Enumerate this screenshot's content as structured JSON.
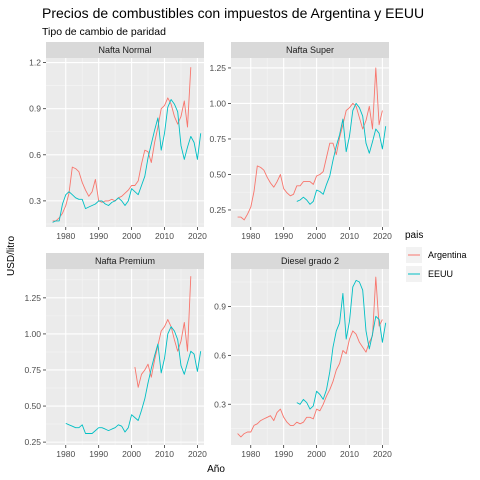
{
  "chart_data": {
    "type": "line",
    "title": "Precios de combustibles con impuestos de Argentina y EEUU",
    "subtitle": "Tipo de cambio de paridad",
    "xlabel": "Año",
    "ylabel": "USD/litro",
    "legend": {
      "title": "pais",
      "position": "right",
      "entries": [
        {
          "name": "Argentina",
          "color": "#F8766D"
        },
        {
          "name": "EEUU",
          "color": "#00BFC4"
        }
      ]
    },
    "grid": true,
    "xlim": [
      1974,
      2022
    ],
    "xticks": [
      1980,
      1990,
      2000,
      2010,
      2020
    ],
    "panels": [
      {
        "label": "Nafta Normal",
        "ylim": [
          0.13,
          1.23
        ],
        "yticks": [
          0.3,
          0.6,
          0.9,
          1.2
        ],
        "ytick_labels": [
          "0.3",
          "0.6",
          "0.9",
          "1.2"
        ],
        "series": [
          {
            "name": "Argentina",
            "x": [
              1976,
              1977,
              1978,
              1979,
              1980,
              1981,
              1982,
              1983,
              1984,
              1985,
              1986,
              1987,
              1988,
              1989,
              1990,
              1991,
              1992,
              1993,
              1994,
              1995,
              1996,
              1997,
              1998,
              1999,
              2000,
              2001,
              2002,
              2003,
              2004,
              2005,
              2006,
              2007,
              2008,
              2009,
              2010,
              2011,
              2012,
              2013,
              2014,
              2015,
              2016,
              2017,
              2018
            ],
            "y": [
              0.17,
              0.17,
              0.19,
              0.22,
              0.27,
              0.35,
              0.52,
              0.51,
              0.49,
              0.42,
              0.37,
              0.33,
              0.36,
              0.44,
              0.3,
              0.29,
              0.3,
              0.3,
              0.31,
              0.3,
              0.32,
              0.33,
              0.35,
              0.37,
              0.4,
              0.4,
              0.43,
              0.54,
              0.63,
              0.62,
              0.55,
              0.68,
              0.78,
              0.9,
              0.92,
              0.97,
              0.93,
              0.85,
              0.8,
              0.85,
              0.95,
              0.78,
              1.17
            ]
          },
          {
            "name": "EEUU",
            "x": [
              1976,
              1977,
              1978,
              1979,
              1980,
              1981,
              1982,
              1983,
              1984,
              1985,
              1986,
              1987,
              1988,
              1989,
              1990,
              1991,
              1992,
              1993,
              1994,
              1995,
              1996,
              1997,
              1998,
              1999,
              2000,
              2001,
              2002,
              2003,
              2004,
              2005,
              2006,
              2007,
              2008,
              2009,
              2010,
              2011,
              2012,
              2013,
              2014,
              2015,
              2016,
              2017,
              2018,
              2019,
              2020,
              2021
            ],
            "y": [
              0.16,
              0.17,
              0.17,
              0.28,
              0.34,
              0.36,
              0.34,
              0.32,
              0.31,
              0.31,
              0.25,
              0.26,
              0.27,
              0.28,
              0.3,
              0.3,
              0.28,
              0.27,
              0.29,
              0.3,
              0.32,
              0.3,
              0.27,
              0.3,
              0.38,
              0.36,
              0.34,
              0.4,
              0.46,
              0.58,
              0.67,
              0.76,
              0.84,
              0.63,
              0.74,
              0.91,
              0.96,
              0.93,
              0.88,
              0.66,
              0.57,
              0.65,
              0.72,
              0.68,
              0.57,
              0.74
            ]
          }
        ]
      },
      {
        "label": "Nafta Super",
        "ylim": [
          0.13,
          1.32
        ],
        "yticks": [
          0.25,
          0.5,
          0.75,
          1.0,
          1.25
        ],
        "ytick_labels": [
          "0.25",
          "0.50",
          "0.75",
          "1.00",
          "1.25"
        ],
        "series": [
          {
            "name": "Argentina",
            "x": [
              1976,
              1977,
              1978,
              1979,
              1980,
              1981,
              1982,
              1983,
              1984,
              1985,
              1986,
              1987,
              1988,
              1989,
              1990,
              1991,
              1992,
              1993,
              1994,
              1995,
              1996,
              1997,
              1998,
              1999,
              2000,
              2001,
              2002,
              2003,
              2004,
              2005,
              2006,
              2007,
              2008,
              2009,
              2010,
              2011,
              2012,
              2013,
              2014,
              2015,
              2016,
              2017,
              2018,
              2019,
              2020
            ],
            "y": [
              0.2,
              0.2,
              0.18,
              0.22,
              0.27,
              0.38,
              0.56,
              0.55,
              0.53,
              0.48,
              0.44,
              0.41,
              0.45,
              0.5,
              0.4,
              0.37,
              0.35,
              0.36,
              0.42,
              0.42,
              0.45,
              0.45,
              0.45,
              0.43,
              0.49,
              0.5,
              0.52,
              0.62,
              0.72,
              0.72,
              0.64,
              0.76,
              0.85,
              0.95,
              0.97,
              1.0,
              0.98,
              0.9,
              0.82,
              0.88,
              0.98,
              0.82,
              1.25,
              0.85,
              0.95
            ]
          },
          {
            "name": "EEUU",
            "x": [
              1994,
              1995,
              1996,
              1997,
              1998,
              1999,
              2000,
              2001,
              2002,
              2003,
              2004,
              2005,
              2006,
              2007,
              2008,
              2009,
              2010,
              2011,
              2012,
              2013,
              2014,
              2015,
              2016,
              2017,
              2018,
              2019,
              2020,
              2021
            ],
            "y": [
              0.31,
              0.32,
              0.34,
              0.32,
              0.29,
              0.31,
              0.39,
              0.38,
              0.36,
              0.43,
              0.49,
              0.6,
              0.7,
              0.78,
              0.89,
              0.66,
              0.77,
              0.95,
              1.0,
              0.97,
              0.91,
              0.72,
              0.65,
              0.73,
              0.82,
              0.79,
              0.68,
              0.84
            ]
          }
        ]
      },
      {
        "label": "Nafta Premium",
        "ylim": [
          0.23,
          1.45
        ],
        "yticks": [
          0.25,
          0.5,
          0.75,
          1.0,
          1.25
        ],
        "ytick_labels": [
          "0.25",
          "0.50",
          "0.75",
          "1.00",
          "1.25"
        ],
        "series": [
          {
            "name": "Argentina",
            "x": [
              2001,
              2002,
              2003,
              2004,
              2005,
              2006,
              2007,
              2008,
              2009,
              2010,
              2011,
              2012,
              2013,
              2014,
              2015,
              2016,
              2017,
              2018
            ],
            "y": [
              0.77,
              0.63,
              0.72,
              0.75,
              0.79,
              0.7,
              0.82,
              0.92,
              1.02,
              1.05,
              1.1,
              1.05,
              0.96,
              0.88,
              0.95,
              1.08,
              0.88,
              1.4
            ]
          },
          {
            "name": "EEUU",
            "x": [
              1980,
              1981,
              1982,
              1983,
              1984,
              1985,
              1986,
              1987,
              1988,
              1989,
              1990,
              1991,
              1992,
              1993,
              1994,
              1995,
              1996,
              1997,
              1998,
              1999,
              2000,
              2001,
              2002,
              2003,
              2004,
              2005,
              2006,
              2007,
              2008,
              2009,
              2010,
              2011,
              2012,
              2013,
              2014,
              2015,
              2016,
              2017,
              2018,
              2019,
              2020,
              2021
            ],
            "y": [
              0.38,
              0.37,
              0.36,
              0.35,
              0.35,
              0.37,
              0.31,
              0.31,
              0.31,
              0.33,
              0.35,
              0.35,
              0.34,
              0.33,
              0.34,
              0.35,
              0.37,
              0.36,
              0.32,
              0.35,
              0.44,
              0.42,
              0.4,
              0.47,
              0.55,
              0.66,
              0.76,
              0.85,
              0.93,
              0.73,
              0.83,
              1.0,
              1.05,
              1.02,
              0.96,
              0.78,
              0.72,
              0.8,
              0.88,
              0.86,
              0.74,
              0.88
            ]
          }
        ]
      },
      {
        "label": "Diesel grado 2",
        "ylim": [
          0.05,
          1.13
        ],
        "yticks": [
          0.3,
          0.6,
          0.9
        ],
        "ytick_labels": [
          "0.3",
          "0.6",
          "0.9"
        ],
        "series": [
          {
            "name": "Argentina",
            "x": [
              1976,
              1977,
              1978,
              1979,
              1980,
              1981,
              1982,
              1983,
              1984,
              1985,
              1986,
              1987,
              1988,
              1989,
              1990,
              1991,
              1992,
              1993,
              1994,
              1995,
              1996,
              1997,
              1998,
              1999,
              2000,
              2001,
              2002,
              2003,
              2004,
              2005,
              2006,
              2007,
              2008,
              2009,
              2010,
              2011,
              2012,
              2013,
              2014,
              2015,
              2016,
              2017,
              2018,
              2019,
              2020
            ],
            "y": [
              0.12,
              0.1,
              0.12,
              0.13,
              0.13,
              0.17,
              0.18,
              0.2,
              0.21,
              0.22,
              0.23,
              0.2,
              0.25,
              0.27,
              0.22,
              0.19,
              0.17,
              0.17,
              0.19,
              0.18,
              0.19,
              0.22,
              0.22,
              0.21,
              0.27,
              0.26,
              0.3,
              0.35,
              0.39,
              0.44,
              0.51,
              0.55,
              0.63,
              0.61,
              0.7,
              0.75,
              0.73,
              0.68,
              0.65,
              0.62,
              0.68,
              0.72,
              1.08,
              0.78,
              0.82
            ]
          },
          {
            "name": "EEUU",
            "x": [
              1994,
              1995,
              1996,
              1997,
              1998,
              1999,
              2000,
              2001,
              2002,
              2003,
              2004,
              2005,
              2006,
              2007,
              2008,
              2009,
              2010,
              2011,
              2012,
              2013,
              2014,
              2015,
              2016,
              2017,
              2018,
              2019,
              2020,
              2021
            ],
            "y": [
              0.31,
              0.3,
              0.33,
              0.31,
              0.27,
              0.29,
              0.38,
              0.36,
              0.33,
              0.39,
              0.5,
              0.65,
              0.75,
              0.8,
              0.98,
              0.7,
              0.81,
              1.02,
              1.06,
              1.05,
              1.0,
              0.75,
              0.64,
              0.73,
              0.84,
              0.82,
              0.68,
              0.8
            ]
          }
        ]
      }
    ]
  }
}
